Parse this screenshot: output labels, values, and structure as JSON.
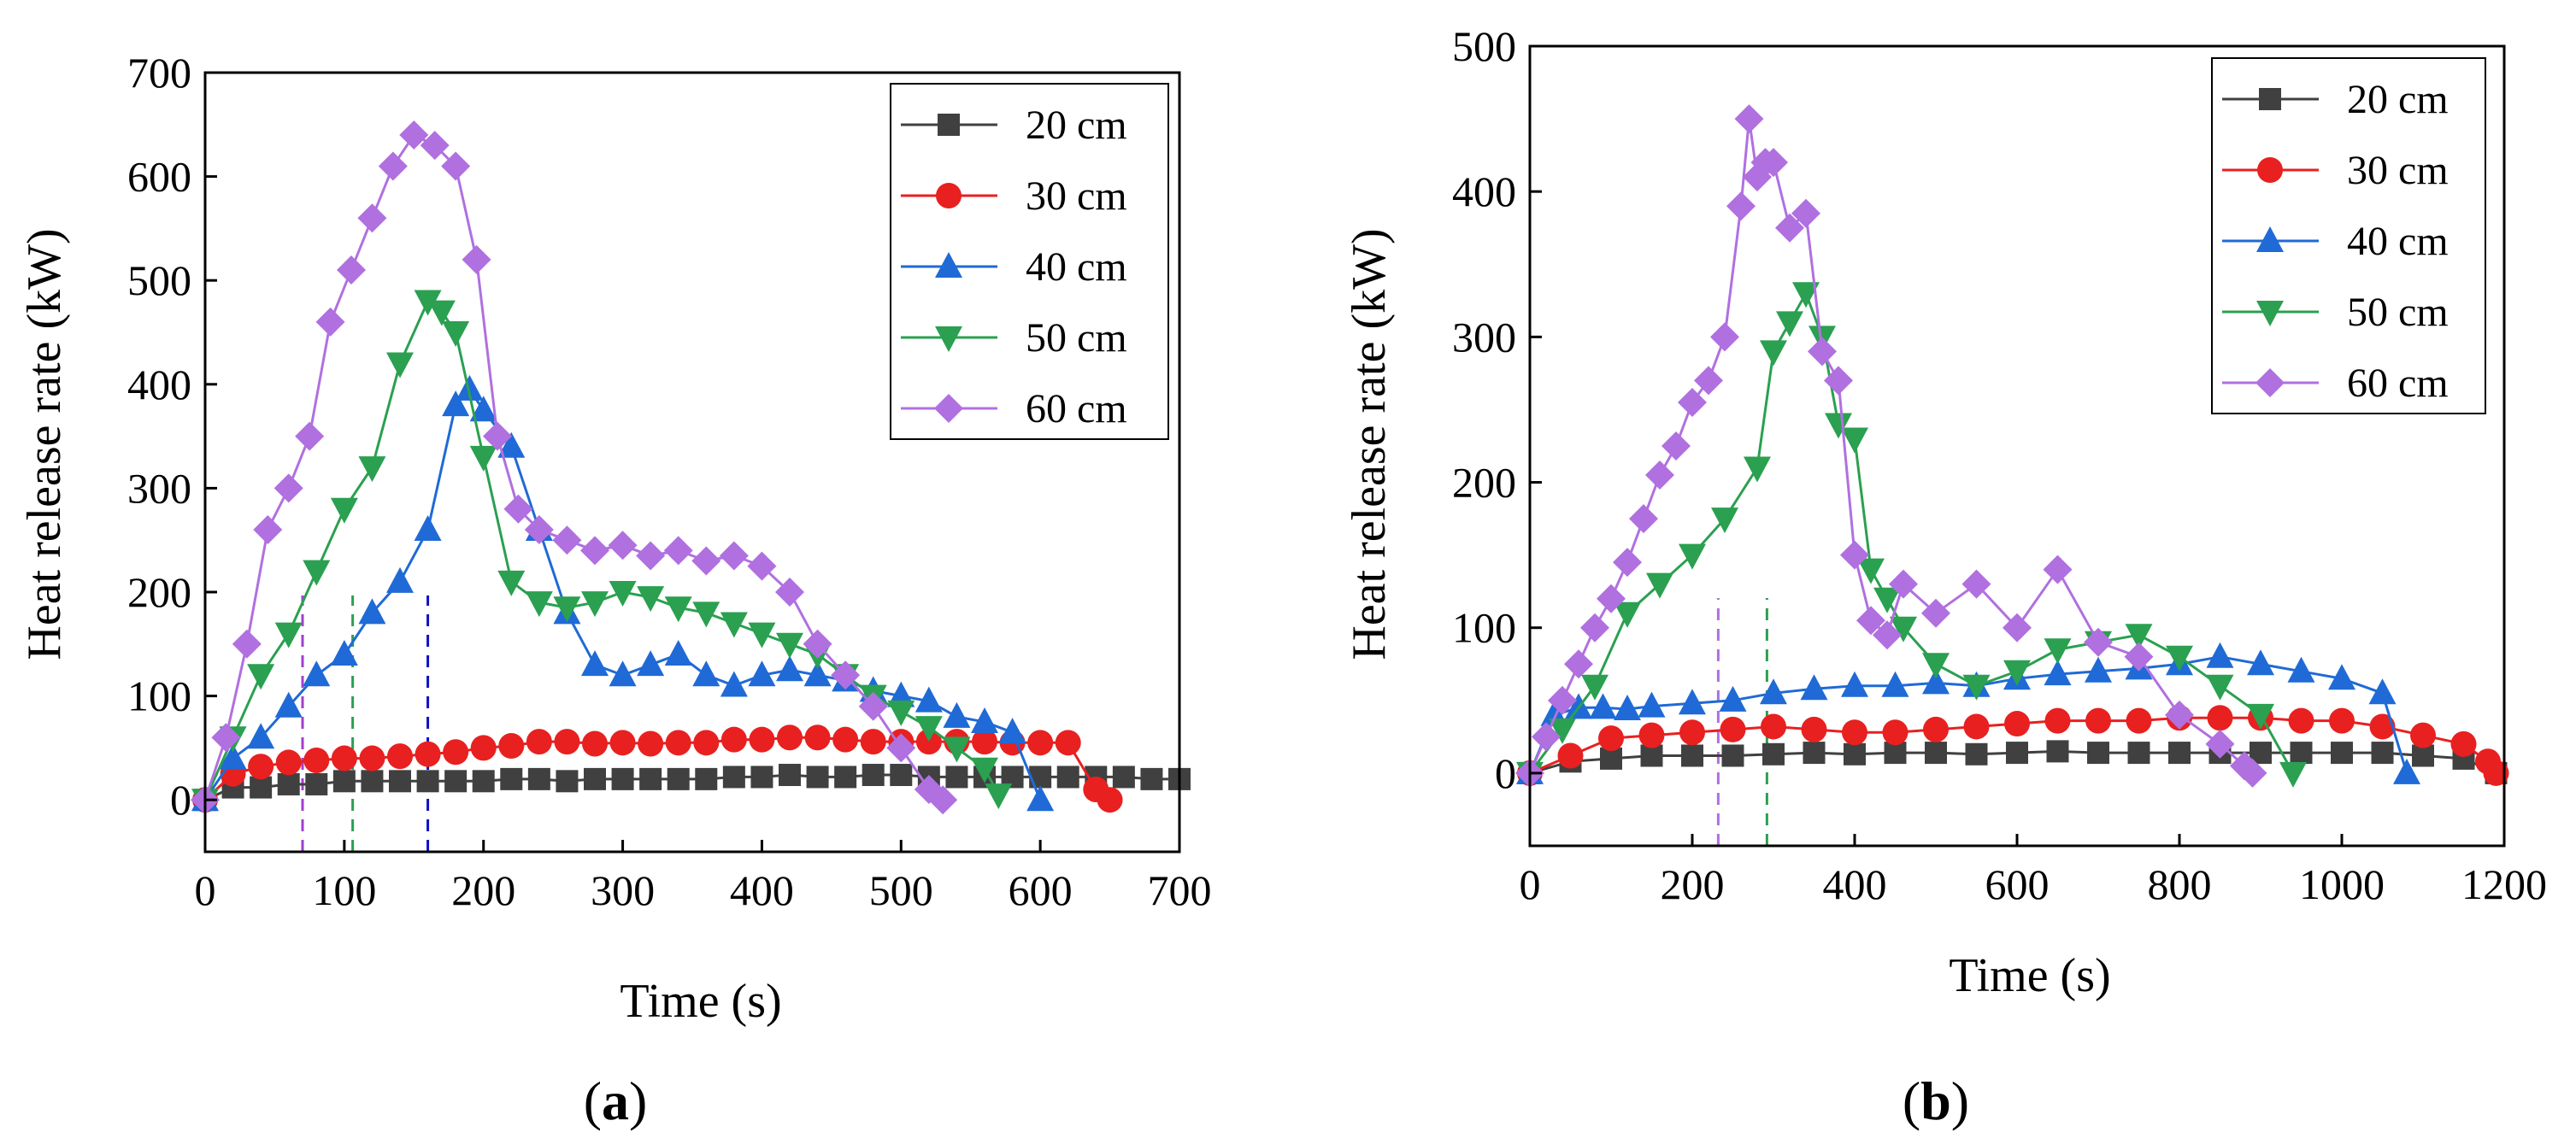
{
  "chart_data": [
    {
      "type": "line",
      "panel_label": "(a)",
      "xlabel": "Time (s)",
      "ylabel": "Heat release rate (kW)",
      "xlim": [
        0,
        700
      ],
      "ylim": [
        -50,
        700
      ],
      "xticks": [
        0,
        100,
        200,
        300,
        400,
        500,
        600,
        700
      ],
      "yticks": [
        0,
        100,
        200,
        300,
        400,
        500,
        600,
        700
      ],
      "grid": false,
      "legend_position": "top-right",
      "reference_lines": [
        {
          "x": 70,
          "color": "#a040d0"
        },
        {
          "x": 106,
          "color": "#2aa050"
        },
        {
          "x": 160,
          "color": "#1010c8"
        }
      ],
      "series": [
        {
          "name": "20 cm",
          "color": "#404040",
          "marker": "square",
          "x": [
            0,
            20,
            40,
            60,
            80,
            100,
            120,
            140,
            160,
            180,
            200,
            220,
            240,
            260,
            280,
            300,
            320,
            340,
            360,
            380,
            400,
            420,
            440,
            460,
            480,
            500,
            520,
            540,
            560,
            580,
            600,
            620,
            640,
            660,
            680,
            700
          ],
          "y": [
            0,
            12,
            12,
            15,
            15,
            18,
            18,
            18,
            18,
            18,
            18,
            20,
            20,
            18,
            20,
            20,
            20,
            20,
            20,
            22,
            22,
            24,
            22,
            22,
            24,
            24,
            22,
            22,
            22,
            22,
            22,
            22,
            22,
            22,
            20,
            20
          ]
        },
        {
          "name": "30 cm",
          "color": "#e82020",
          "marker": "circle",
          "x": [
            0,
            20,
            40,
            60,
            80,
            100,
            120,
            140,
            160,
            180,
            200,
            220,
            240,
            260,
            280,
            300,
            320,
            340,
            360,
            380,
            400,
            420,
            440,
            460,
            480,
            500,
            520,
            540,
            560,
            580,
            600,
            620,
            640,
            650
          ],
          "y": [
            0,
            25,
            32,
            36,
            38,
            40,
            40,
            42,
            44,
            46,
            50,
            52,
            56,
            56,
            54,
            55,
            54,
            55,
            55,
            58,
            58,
            60,
            60,
            58,
            56,
            56,
            56,
            56,
            56,
            55,
            55,
            55,
            10,
            0
          ]
        },
        {
          "name": "40 cm",
          "color": "#1f6ad6",
          "marker": "triangle-up",
          "x": [
            0,
            20,
            40,
            60,
            80,
            100,
            120,
            140,
            160,
            180,
            190,
            200,
            220,
            240,
            260,
            280,
            300,
            320,
            340,
            360,
            380,
            400,
            420,
            440,
            460,
            480,
            500,
            520,
            540,
            560,
            580,
            600
          ],
          "y": [
            0,
            40,
            60,
            90,
            120,
            140,
            180,
            210,
            260,
            380,
            395,
            375,
            340,
            260,
            180,
            130,
            120,
            130,
            140,
            120,
            110,
            120,
            125,
            120,
            115,
            105,
            100,
            95,
            80,
            75,
            65,
            0
          ]
        },
        {
          "name": "50 cm",
          "color": "#2aa050",
          "marker": "triangle-down",
          "x": [
            0,
            20,
            40,
            60,
            80,
            100,
            120,
            140,
            160,
            170,
            180,
            200,
            220,
            240,
            260,
            280,
            300,
            320,
            340,
            360,
            380,
            400,
            420,
            440,
            460,
            480,
            500,
            520,
            540,
            560,
            570
          ],
          "y": [
            0,
            60,
            120,
            160,
            220,
            280,
            320,
            420,
            480,
            470,
            450,
            330,
            210,
            190,
            185,
            190,
            200,
            195,
            185,
            180,
            170,
            160,
            150,
            140,
            120,
            100,
            85,
            70,
            50,
            30,
            5
          ]
        },
        {
          "name": "60 cm",
          "color": "#b070e0",
          "marker": "diamond",
          "x": [
            0,
            15,
            30,
            45,
            60,
            75,
            90,
            105,
            120,
            135,
            150,
            165,
            180,
            195,
            210,
            225,
            240,
            260,
            280,
            300,
            320,
            340,
            360,
            380,
            400,
            420,
            440,
            460,
            480,
            500,
            520,
            530
          ],
          "y": [
            0,
            60,
            150,
            260,
            300,
            350,
            460,
            510,
            560,
            610,
            640,
            630,
            610,
            520,
            350,
            280,
            260,
            250,
            240,
            245,
            235,
            240,
            230,
            235,
            225,
            200,
            150,
            120,
            90,
            50,
            10,
            0
          ]
        }
      ]
    },
    {
      "type": "line",
      "panel_label": "(b)",
      "xlabel": "Time (s)",
      "ylabel": "Heat release rate (kW)",
      "xlim": [
        0,
        1200
      ],
      "ylim": [
        -50,
        500
      ],
      "xticks": [
        0,
        200,
        400,
        600,
        800,
        1000,
        1200
      ],
      "yticks": [
        0,
        100,
        200,
        300,
        400,
        500
      ],
      "grid": false,
      "legend_position": "top-right",
      "reference_lines": [
        {
          "x": 232,
          "color": "#b070e0"
        },
        {
          "x": 292,
          "color": "#2aa050"
        }
      ],
      "series": [
        {
          "name": "20 cm",
          "color": "#404040",
          "marker": "square",
          "x": [
            0,
            50,
            100,
            150,
            200,
            250,
            300,
            350,
            400,
            450,
            500,
            550,
            600,
            650,
            700,
            750,
            800,
            850,
            900,
            950,
            1000,
            1050,
            1100,
            1150,
            1190
          ],
          "y": [
            0,
            8,
            10,
            12,
            12,
            12,
            13,
            14,
            13,
            14,
            14,
            13,
            14,
            15,
            14,
            14,
            14,
            14,
            14,
            14,
            14,
            14,
            12,
            10,
            0
          ]
        },
        {
          "name": "30 cm",
          "color": "#e82020",
          "marker": "circle",
          "x": [
            0,
            50,
            100,
            150,
            200,
            250,
            300,
            350,
            400,
            450,
            500,
            550,
            600,
            650,
            700,
            750,
            800,
            850,
            900,
            950,
            1000,
            1050,
            1100,
            1150,
            1180,
            1190
          ],
          "y": [
            0,
            12,
            24,
            26,
            28,
            30,
            32,
            30,
            28,
            28,
            30,
            32,
            34,
            36,
            36,
            36,
            38,
            38,
            38,
            36,
            36,
            32,
            26,
            20,
            8,
            0
          ]
        },
        {
          "name": "40 cm",
          "color": "#1f6ad6",
          "marker": "triangle-up",
          "x": [
            0,
            30,
            60,
            90,
            120,
            150,
            200,
            250,
            300,
            350,
            400,
            450,
            500,
            550,
            600,
            650,
            700,
            750,
            800,
            850,
            900,
            950,
            1000,
            1050,
            1080
          ],
          "y": [
            0,
            40,
            45,
            45,
            44,
            46,
            48,
            50,
            55,
            58,
            60,
            60,
            62,
            60,
            65,
            68,
            70,
            72,
            75,
            80,
            75,
            70,
            65,
            55,
            0
          ]
        },
        {
          "name": "50 cm",
          "color": "#2aa050",
          "marker": "triangle-down",
          "x": [
            0,
            40,
            80,
            120,
            160,
            200,
            240,
            280,
            300,
            320,
            340,
            360,
            380,
            400,
            420,
            440,
            460,
            500,
            550,
            600,
            650,
            700,
            750,
            800,
            850,
            900,
            940
          ],
          "y": [
            0,
            30,
            60,
            110,
            130,
            150,
            175,
            210,
            290,
            310,
            330,
            300,
            240,
            230,
            140,
            120,
            100,
            75,
            60,
            70,
            85,
            90,
            95,
            80,
            60,
            40,
            0
          ]
        },
        {
          "name": "60 cm",
          "color": "#b070e0",
          "marker": "diamond",
          "x": [
            0,
            20,
            40,
            60,
            80,
            100,
            120,
            140,
            160,
            180,
            200,
            220,
            240,
            260,
            270,
            280,
            290,
            300,
            320,
            340,
            360,
            380,
            400,
            420,
            440,
            460,
            500,
            550,
            600,
            650,
            700,
            750,
            800,
            850,
            880,
            890
          ],
          "y": [
            0,
            25,
            50,
            75,
            100,
            120,
            145,
            175,
            205,
            225,
            255,
            270,
            300,
            390,
            450,
            410,
            420,
            420,
            375,
            385,
            290,
            270,
            150,
            105,
            95,
            130,
            110,
            130,
            100,
            140,
            90,
            80,
            40,
            20,
            5,
            0
          ]
        }
      ]
    }
  ]
}
